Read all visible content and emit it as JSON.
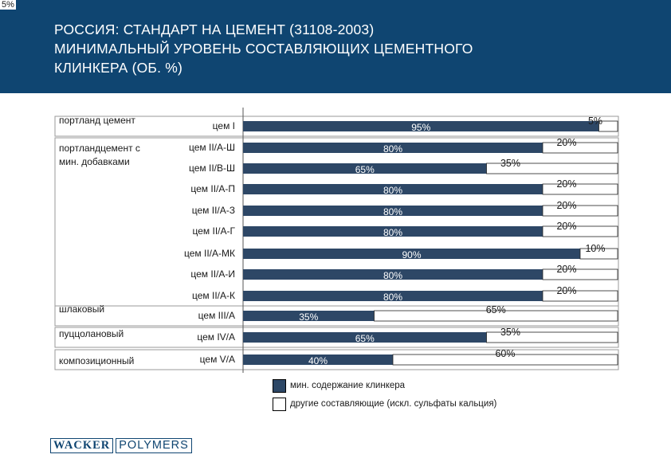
{
  "corner_label": "5%",
  "header": {
    "lines": [
      "РОССИЯ:  СТАНДАРТ НА ЦЕМЕНТ (31108-2003)",
      "МИНИМАЛЬНЫЙ УРОВЕНЬ СОСТАВЛЯЮЩИХ ЦЕМЕНТНОГО",
      "КЛИНКЕРА (ОБ. %)"
    ]
  },
  "colors": {
    "header_bg": "#0f4571",
    "clinker": "#2d4766",
    "other": "#ffffff"
  },
  "chart_data": {
    "type": "bar",
    "orientation": "horizontal",
    "stacked": true,
    "title": "РОССИЯ:  СТАНДАРТ НА ЦЕМЕНТ (31108-2003) МИНИМАЛЬНЫЙ УРОВЕНЬ СОСТАВЛЯЮЩИХ ЦЕМЕНТНОГО КЛИНКЕРА (ОБ. %)",
    "xlim": [
      0,
      100
    ],
    "groups": [
      {
        "label": "портланд цемент",
        "categories": [
          "цем I"
        ]
      },
      {
        "label": "портландцемент с мин. добавками",
        "categories": [
          "цем II/А-Ш",
          "цем II/В-Ш",
          "цем II/А-П",
          "цем II/А-З",
          "цем II/А-Г",
          "цем II/А-МК",
          "цем II/А-И",
          "цем II/А-К"
        ]
      },
      {
        "label": "шлаковый",
        "categories": [
          "цем III/А"
        ]
      },
      {
        "label": "пуццолановый",
        "categories": [
          "цем IV/А"
        ]
      },
      {
        "label": "композиционный",
        "categories": [
          "цем V/А"
        ]
      }
    ],
    "categories": [
      "цем I",
      "цем II/А-Ш",
      "цем II/В-Ш",
      "цем II/А-П",
      "цем II/А-З",
      "цем II/А-Г",
      "цем II/А-МК",
      "цем II/А-И",
      "цем II/А-К",
      "цем III/А",
      "цем IV/А",
      "цем V/А"
    ],
    "series": [
      {
        "name": "мин. содержание клинкера",
        "color": "#2d4766",
        "values": [
          95,
          80,
          65,
          80,
          80,
          80,
          90,
          80,
          80,
          35,
          65,
          40
        ],
        "labels": [
          "95%",
          "80%",
          "65%",
          "80%",
          "80%",
          "80%",
          "90%",
          "80%",
          "80%",
          "35%",
          "65%",
          "40%"
        ]
      },
      {
        "name": "другие составляющие (искл. сульфаты кальция)",
        "color": "#ffffff",
        "values": [
          5,
          20,
          35,
          20,
          20,
          20,
          10,
          20,
          20,
          65,
          35,
          60
        ],
        "labels": [
          "5%",
          "20%",
          "35%",
          "20%",
          "20%",
          "20%",
          "10%",
          "20%",
          "20%",
          "65%",
          "35%",
          "60%"
        ]
      }
    ]
  },
  "legend": {
    "items": [
      {
        "label": "мин. содержание клинкера",
        "color": "#2d4766"
      },
      {
        "label": "другие составляющие (искл. сульфаты кальция)",
        "color": "#ffffff"
      }
    ]
  },
  "logo": {
    "left": "WACKER",
    "right": "POLYMERS"
  }
}
